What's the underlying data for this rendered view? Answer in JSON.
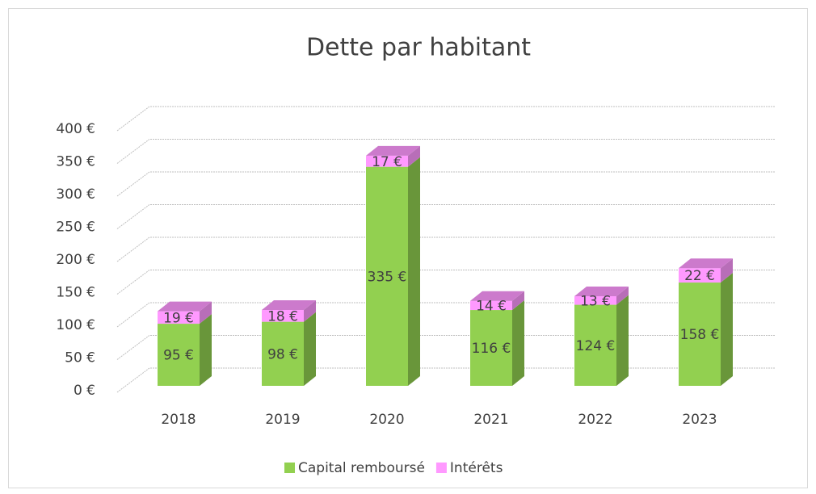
{
  "chart_data": {
    "type": "stacked_bar_3d",
    "title": "Dette par habitant",
    "categories": [
      "2018",
      "2019",
      "2020",
      "2021",
      "2022",
      "2023"
    ],
    "series": [
      {
        "name": "Capital remboursé",
        "color": "#92d050",
        "values": [
          95,
          98,
          335,
          116,
          124,
          158
        ],
        "value_labels": [
          "95 €",
          "98 €",
          "335 €",
          "116 €",
          "124 €",
          "158 €"
        ]
      },
      {
        "name": "Intérêts",
        "color": "#ff99ff",
        "values": [
          19,
          18,
          17,
          14,
          13,
          22
        ],
        "value_labels": [
          "19 €",
          "18 €",
          "17 €",
          "14 €",
          "13 €",
          "22 €"
        ]
      }
    ],
    "ylim": [
      0,
      400
    ],
    "yticks": [
      {
        "value": 0,
        "label": "0 €"
      },
      {
        "value": 50,
        "label": "50 €"
      },
      {
        "value": 100,
        "label": "100 €"
      },
      {
        "value": 150,
        "label": "150 €"
      },
      {
        "value": 200,
        "label": "200 €"
      },
      {
        "value": 250,
        "label": "250 €"
      },
      {
        "value": 300,
        "label": "300 €"
      },
      {
        "value": 350,
        "label": "350 €"
      },
      {
        "value": 400,
        "label": "400 €"
      }
    ],
    "grid": true,
    "legend": "bottom"
  }
}
